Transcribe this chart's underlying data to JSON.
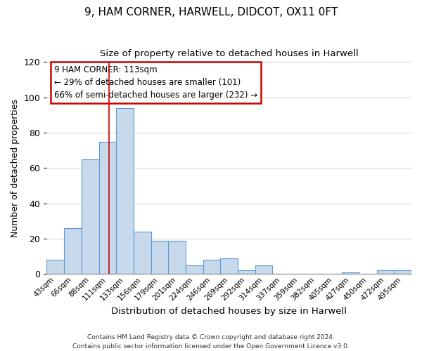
{
  "title": "9, HAM CORNER, HARWELL, DIDCOT, OX11 0FT",
  "subtitle": "Size of property relative to detached houses in Harwell",
  "xlabel": "Distribution of detached houses by size in Harwell",
  "ylabel": "Number of detached properties",
  "bar_labels": [
    "43sqm",
    "66sqm",
    "88sqm",
    "111sqm",
    "133sqm",
    "156sqm",
    "179sqm",
    "201sqm",
    "224sqm",
    "246sqm",
    "269sqm",
    "292sqm",
    "314sqm",
    "337sqm",
    "359sqm",
    "382sqm",
    "405sqm",
    "427sqm",
    "450sqm",
    "472sqm",
    "495sqm"
  ],
  "bar_heights": [
    8,
    26,
    65,
    75,
    94,
    24,
    19,
    19,
    5,
    8,
    9,
    2,
    5,
    0,
    0,
    0,
    0,
    1,
    0,
    2,
    2
  ],
  "bar_color": "#c9d9ec",
  "bar_edge_color": "#5b9bd5",
  "ylim": [
    0,
    120
  ],
  "yticks": [
    0,
    20,
    40,
    60,
    80,
    100,
    120
  ],
  "annotation_title": "9 HAM CORNER: 113sqm",
  "annotation_line1": "← 29% of detached houses are smaller (101)",
  "annotation_line2": "66% of semi-detached houses are larger (232) →",
  "annotation_box_color": "#ffffff",
  "annotation_box_edge": "#cc0000",
  "footer1": "Contains HM Land Registry data © Crown copyright and database right 2024.",
  "footer2": "Contains public sector information licensed under the Open Government Licence v3.0."
}
